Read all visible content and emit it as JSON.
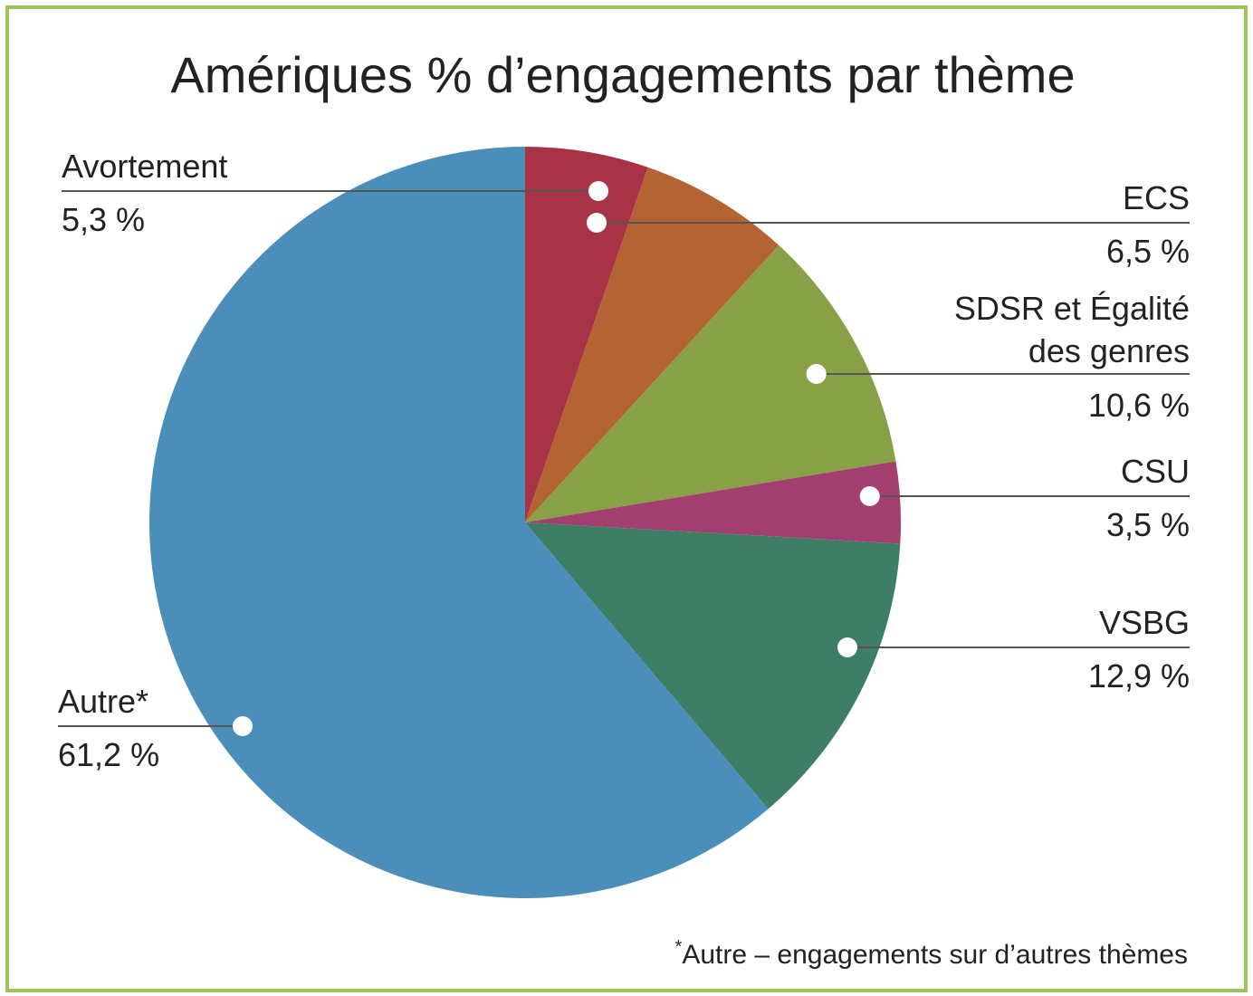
{
  "chart_data": {
    "type": "pie",
    "title": "Amériques % d’engagements par thème",
    "slices": [
      {
        "label": "Avortement",
        "value": 5.3,
        "value_label": "5,3 %",
        "color": "#a93346"
      },
      {
        "label": "ECS",
        "value": 6.5,
        "value_label": "6,5 %",
        "color": "#b36432"
      },
      {
        "label_lines": [
          "SDSR et Égalité",
          "des genres"
        ],
        "label": "SDSR et Égalité des genres",
        "value": 10.6,
        "value_label": "10,6 %",
        "color": "#88a046"
      },
      {
        "label": "CSU",
        "value": 3.5,
        "value_label": "3,5 %",
        "color": "#a23f6e"
      },
      {
        "label": "VSBG",
        "value": 12.9,
        "value_label": "12,9 %",
        "color": "#3e7e67"
      },
      {
        "label": "Autre*",
        "value": 61.2,
        "value_label": "61,2 %",
        "color": "#4a8eb9"
      }
    ],
    "footnote_mark": "*",
    "footnote": "Autre – engagements sur d’autres thèmes"
  },
  "colors": {
    "border": "#9dc35a",
    "text": "#222222",
    "leader": "#555555"
  }
}
